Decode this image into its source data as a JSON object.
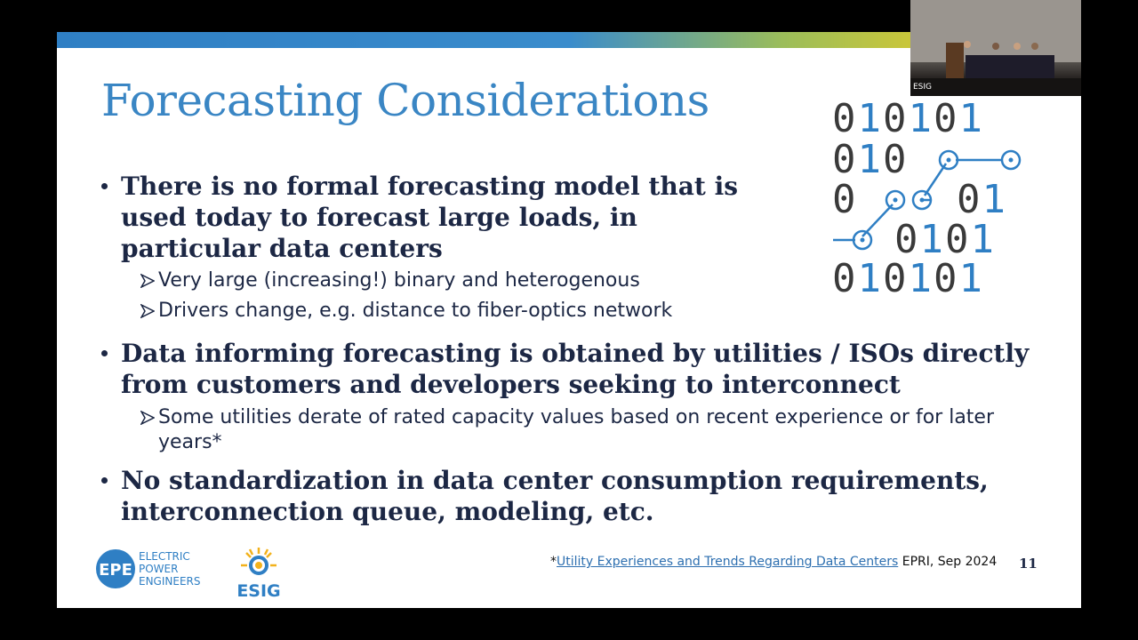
{
  "slide": {
    "title": "Forecasting Considerations",
    "bullets": [
      {
        "text": "There is no formal forecasting model that is used today to forecast large loads, in particular data centers",
        "sub": [
          "Very large (increasing!) binary and heterogenous",
          "Drivers change, e.g. distance to fiber-optics network"
        ]
      },
      {
        "text": "Data informing forecasting is obtained by utilities / ISOs directly from customers and developers seeking to interconnect",
        "sub": [
          "Some utilities derate of rated capacity values based on recent experience or for later years*"
        ]
      },
      {
        "text": "No standardization in data center consumption requirements, interconnection queue, modeling, etc.",
        "sub": []
      }
    ],
    "binary_graphic": [
      "010101",
      "010",
      "0",
      "01",
      "0101",
      "010101"
    ],
    "footnote": {
      "mark": "*",
      "link": "Utility Experiences and Trends Regarding Data Centers",
      "source": "EPRI, Sep 2024"
    },
    "page_number": "11",
    "logos": {
      "epe": "EPE",
      "epe_lines": [
        "ELECTRIC",
        "POWER",
        "ENGINEERS"
      ],
      "esig": "ESIG"
    }
  },
  "video": {
    "label": "ESIG"
  }
}
